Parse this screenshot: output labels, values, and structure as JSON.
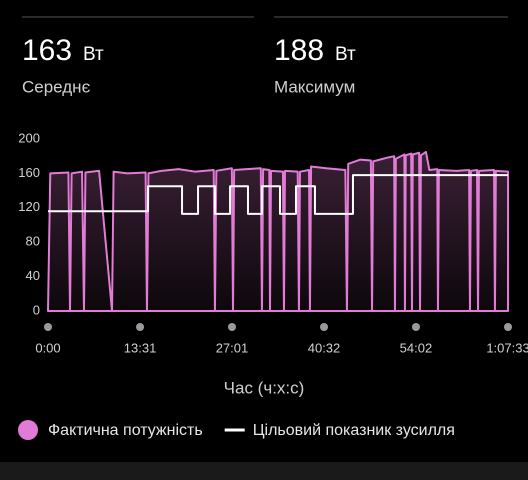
{
  "stats": [
    {
      "value": 163,
      "unit": "Вт",
      "label": "Середнє"
    },
    {
      "value": 188,
      "unit": "Вт",
      "label": "Максимум"
    }
  ],
  "chart_data": {
    "type": "line",
    "xlabel": "Час (ч:х:с)",
    "xlim": [
      0,
      4053
    ],
    "xticks": [
      {
        "value": 0,
        "label": "0:00"
      },
      {
        "value": 811,
        "label": "13:31"
      },
      {
        "value": 1621,
        "label": "27:01"
      },
      {
        "value": 2432,
        "label": "40:32"
      },
      {
        "value": 3242,
        "label": "54:02"
      },
      {
        "value": 4053,
        "label": "1:07:33"
      }
    ],
    "ylim": [
      0,
      200
    ],
    "yticks": [
      0,
      40,
      80,
      120,
      160,
      200
    ],
    "grid": false,
    "legend": "bottom",
    "series": [
      {
        "name": "Фактична потужність",
        "color": "#e27bd6",
        "fill": true,
        "x": [
          0,
          20,
          180,
          194,
          208,
          300,
          317,
          330,
          450,
          564,
          578,
          700,
          860,
          872,
          885,
          1000,
          1150,
          1300,
          1460,
          1471,
          1483,
          1620,
          1630,
          1640,
          1750,
          1875,
          1885,
          1895,
          1950,
          1956,
          1965,
          2070,
          2079,
          2088,
          2200,
          2211,
          2220,
          2300,
          2308,
          2318,
          2450,
          2620,
          2634,
          2645,
          2750,
          2845,
          2855,
          2865,
          2980,
          3050,
          3057,
          3065,
          3140,
          3145,
          3152,
          3200,
          3207,
          3214,
          3270,
          3278,
          3286,
          3330,
          3360,
          3430,
          3436,
          3444,
          3600,
          3710,
          3718,
          3726,
          3780,
          3789,
          3797,
          3930,
          3938,
          3946,
          4053
        ],
        "values": [
          0,
          160,
          161,
          0,
          160,
          162,
          0,
          161,
          163,
          0,
          162,
          160,
          161,
          0,
          160,
          163,
          165,
          162,
          164,
          0,
          163,
          166,
          0,
          164,
          165,
          166,
          0,
          165,
          164,
          0,
          163,
          162,
          0,
          163,
          162,
          0,
          162,
          164,
          0,
          168,
          166,
          164,
          0,
          171,
          176,
          175,
          0,
          174,
          178,
          180,
          0,
          177,
          182,
          0,
          181,
          183,
          0,
          182,
          184,
          0,
          181,
          185,
          164,
          165,
          0,
          164,
          163,
          164,
          0,
          163,
          164,
          0,
          163,
          164,
          0,
          163,
          162
        ]
      },
      {
        "name": "Цільовий показник зусилля",
        "color": "#ffffff",
        "fill": false,
        "x": [
          0,
          881,
          881,
          1181,
          1181,
          1322,
          1322,
          1471,
          1471,
          1604,
          1604,
          1762,
          1762,
          1885,
          1885,
          2044,
          2044,
          2185,
          2185,
          2352,
          2352,
          2687,
          2687,
          4053
        ],
        "values": [
          116,
          116,
          145,
          145,
          113,
          113,
          145,
          145,
          113,
          113,
          145,
          145,
          113,
          113,
          145,
          145,
          113,
          113,
          145,
          145,
          113,
          113,
          158,
          158
        ]
      }
    ]
  }
}
